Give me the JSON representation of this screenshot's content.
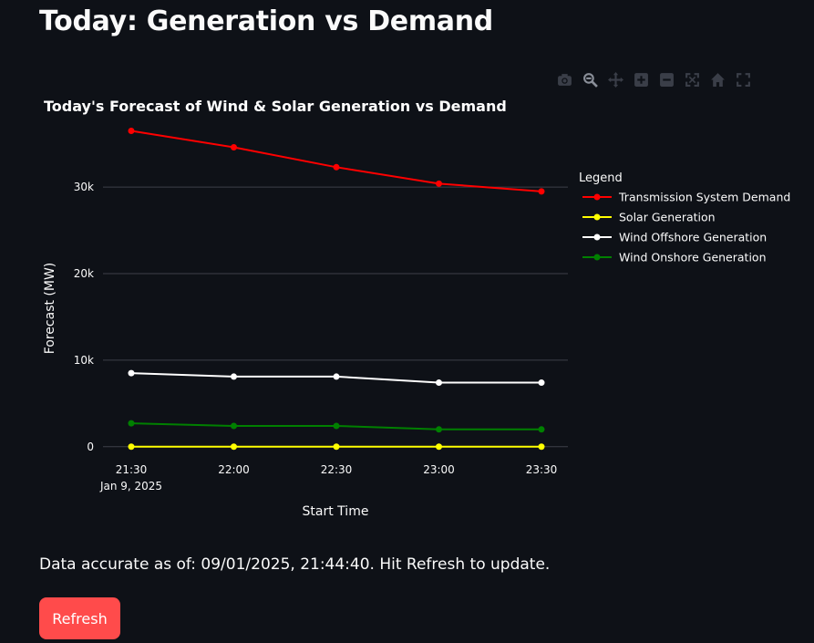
{
  "page": {
    "title": "Today: Generation vs Demand",
    "footer": "Data accurate as of: 09/01/2025, 21:44:40. Hit Refresh to update.",
    "refresh_label": "Refresh"
  },
  "modebar": [
    "camera-icon",
    "zoom-icon",
    "pan-icon",
    "zoom-in-icon",
    "zoom-out-icon",
    "autoscale-icon",
    "reset-axes-icon",
    "fullscreen-icon"
  ],
  "chart_data": {
    "type": "line",
    "title": "Today's Forecast of Wind & Solar Generation vs Demand",
    "xlabel": "Start Time",
    "ylabel": "Forecast (MW)",
    "x": [
      "21:30",
      "22:00",
      "22:30",
      "23:00",
      "23:30"
    ],
    "x_sublabel": "Jan 9, 2025",
    "yticks": [
      0,
      10000,
      20000,
      30000
    ],
    "ytick_labels": [
      "0",
      "10k",
      "20k",
      "30k"
    ],
    "ylim": [
      -1500,
      39500
    ],
    "grid": true,
    "legend": {
      "title": "Legend",
      "placement": "right"
    },
    "series": [
      {
        "name": "Transmission System Demand",
        "color": "#ff0000",
        "values": [
          36500,
          34600,
          32300,
          30400,
          29500
        ]
      },
      {
        "name": "Solar Generation",
        "color": "#ffff00",
        "values": [
          0,
          0,
          0,
          0,
          0
        ]
      },
      {
        "name": "Wind Offshore Generation",
        "color": "#ffffff",
        "values": [
          8500,
          8100,
          8100,
          7400,
          7400
        ]
      },
      {
        "name": "Wind Onshore Generation",
        "color": "#008000",
        "values": [
          2700,
          2400,
          2400,
          2000,
          2000
        ]
      }
    ]
  }
}
